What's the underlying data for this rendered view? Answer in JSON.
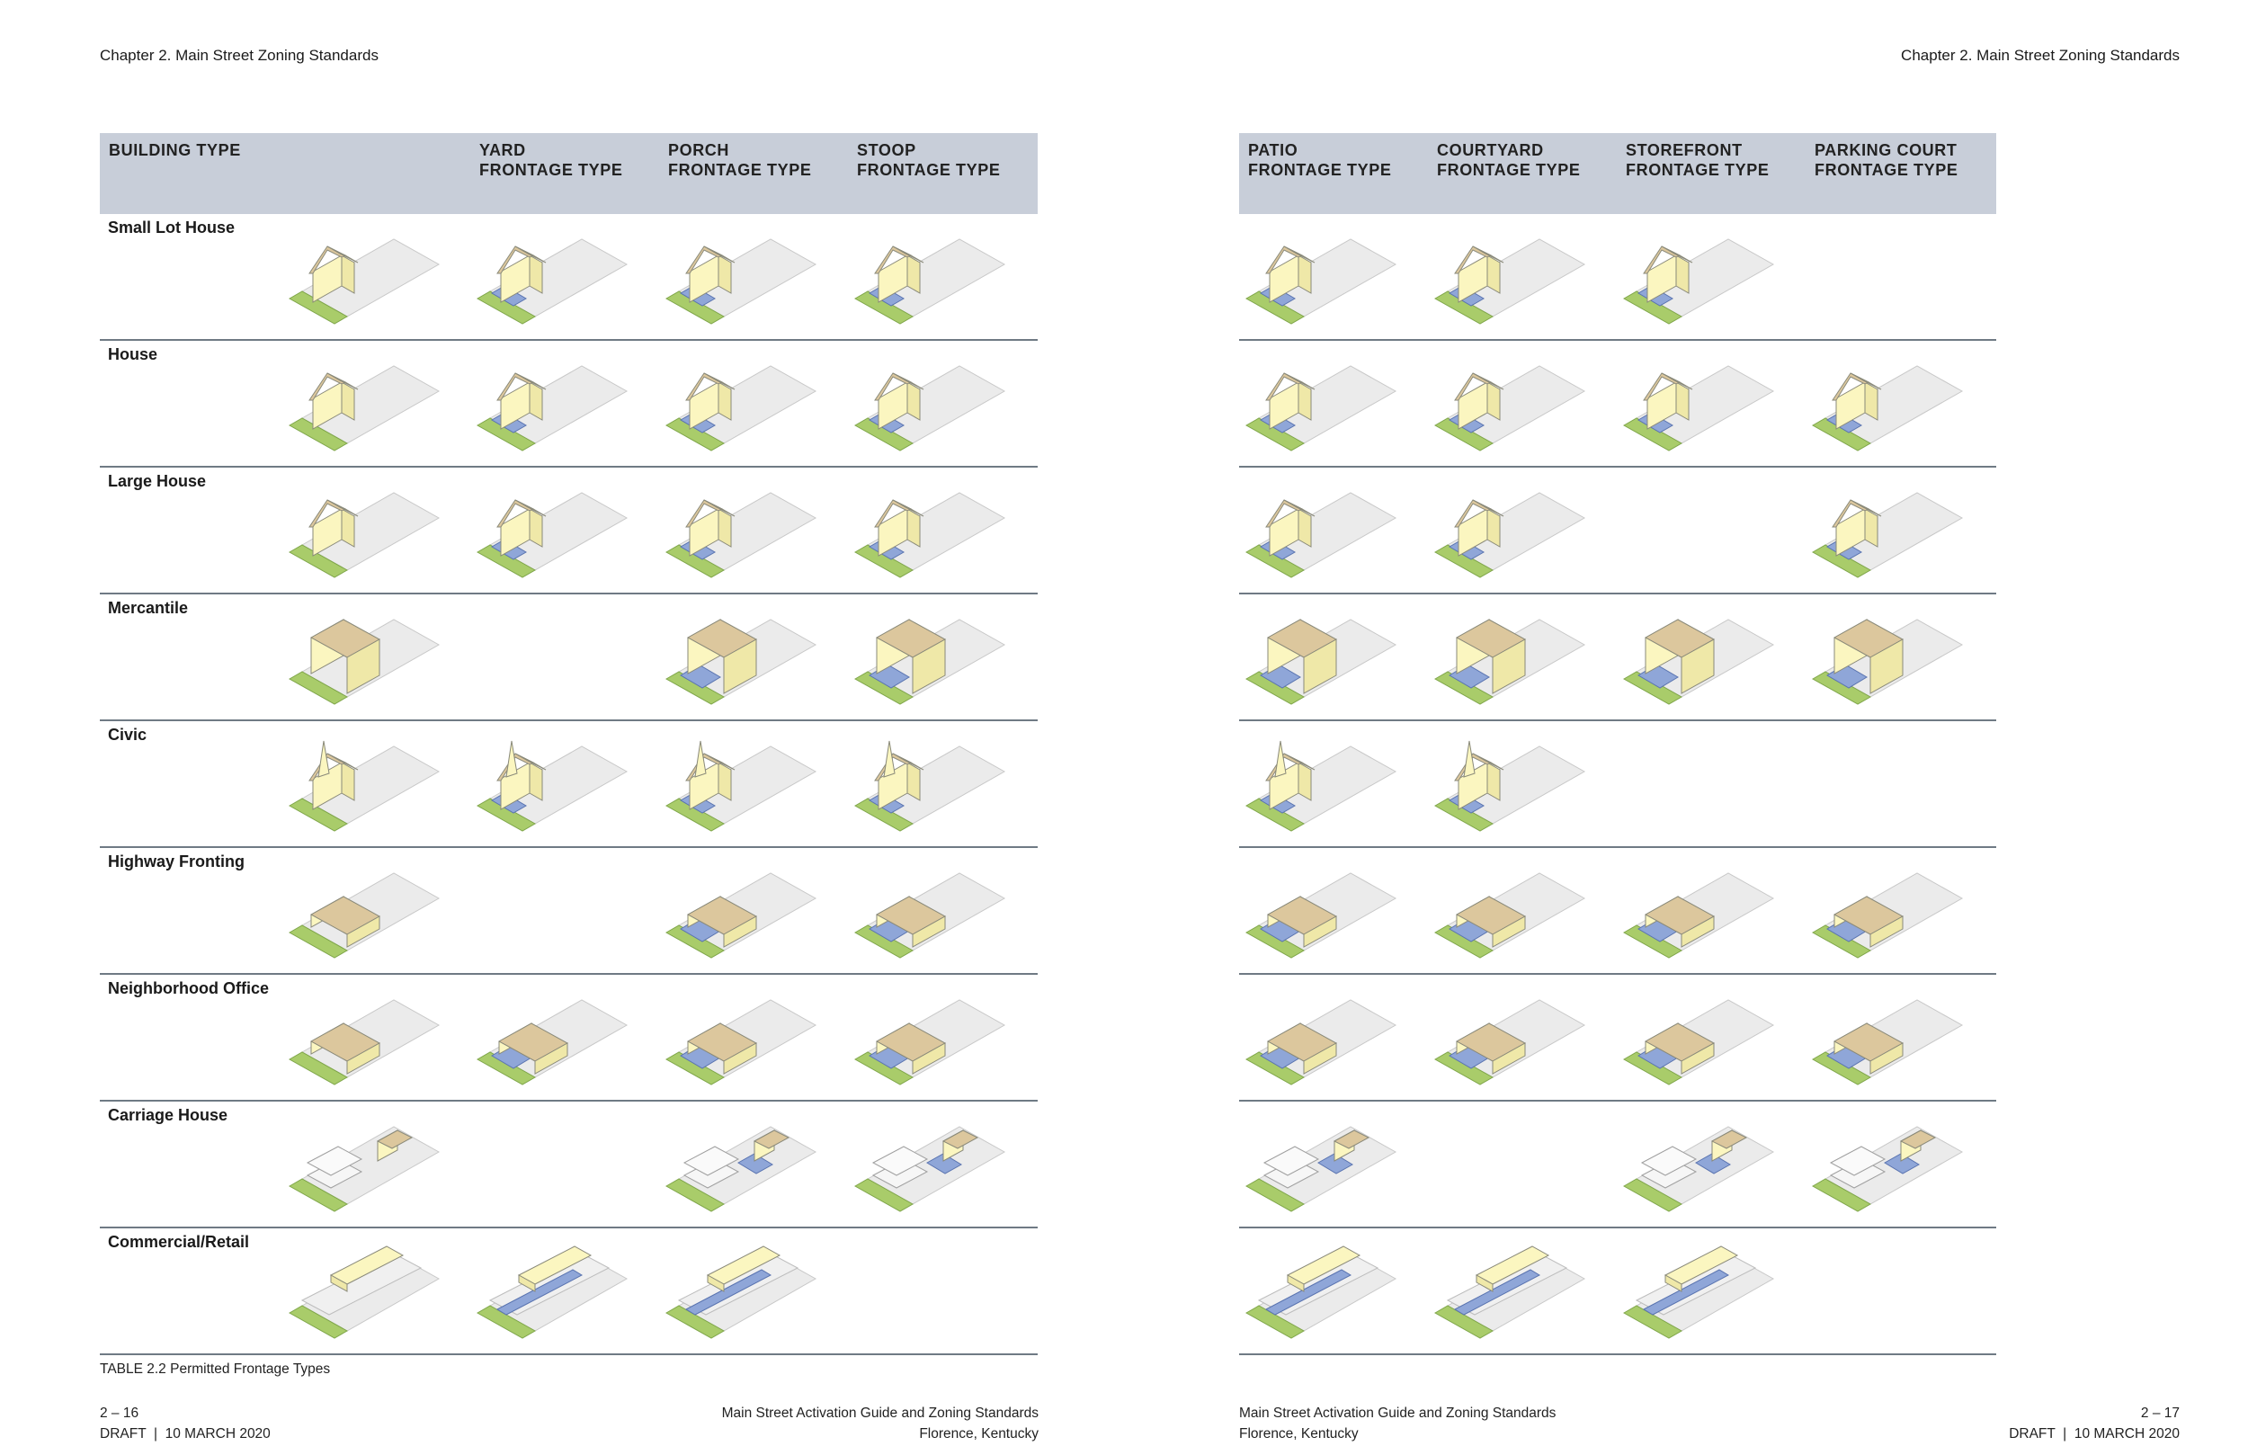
{
  "running_header": {
    "left": "Chapter 2. Main Street Zoning Standards",
    "right": "Chapter 2. Main Street Zoning Standards"
  },
  "table": {
    "building_type_header": "BUILDING TYPE",
    "columns_left": [
      {
        "line1": "YARD",
        "line2": "FRONTAGE TYPE"
      },
      {
        "line1": "PORCH",
        "line2": "FRONTAGE TYPE"
      },
      {
        "line1": "STOOP",
        "line2": "FRONTAGE TYPE"
      }
    ],
    "columns_right": [
      {
        "line1": "PATIO",
        "line2": "FRONTAGE TYPE"
      },
      {
        "line1": "COURTYARD",
        "line2": "FRONTAGE TYPE"
      },
      {
        "line1": "STOREFRONT",
        "line2": "FRONTAGE TYPE"
      },
      {
        "line1": "PARKING COURT",
        "line2": "FRONTAGE TYPE"
      }
    ],
    "rows": [
      {
        "label": "Small Lot House",
        "kind": "house",
        "cells": [
          1,
          1,
          1,
          1,
          1,
          1,
          1,
          0
        ]
      },
      {
        "label": "House",
        "kind": "house",
        "cells": [
          1,
          1,
          1,
          1,
          1,
          1,
          1,
          1
        ]
      },
      {
        "label": "Large House",
        "kind": "house",
        "cells": [
          1,
          1,
          1,
          1,
          1,
          1,
          0,
          1
        ]
      },
      {
        "label": "Mercantile",
        "kind": "block",
        "cells": [
          1,
          0,
          1,
          1,
          1,
          1,
          1,
          1
        ]
      },
      {
        "label": "Civic",
        "kind": "civic",
        "cells": [
          1,
          1,
          1,
          1,
          1,
          1,
          0,
          0
        ]
      },
      {
        "label": "Highway Fronting",
        "kind": "flat",
        "cells": [
          1,
          0,
          1,
          1,
          1,
          1,
          1,
          1
        ]
      },
      {
        "label": "Neighborhood Office",
        "kind": "flat",
        "cells": [
          1,
          1,
          1,
          1,
          1,
          1,
          1,
          1
        ]
      },
      {
        "label": "Carriage House",
        "kind": "carriage",
        "cells": [
          1,
          0,
          1,
          1,
          1,
          0,
          1,
          1
        ]
      },
      {
        "label": "Commercial/Retail",
        "kind": "retail",
        "cells": [
          1,
          1,
          1,
          0,
          1,
          1,
          1,
          0
        ]
      }
    ],
    "caption": "TABLE 2.2  Permitted Frontage Types"
  },
  "footer": {
    "left_page": "2 – 16",
    "left_draft": "DRAFT  |  10 MARCH 2020",
    "center_left_title": "Main Street Activation Guide and Zoning Standards",
    "center_left_place": "Florence, Kentucky",
    "center_right_title": "Main Street Activation Guide and Zoning Standards",
    "center_right_place": "Florence, Kentucky",
    "right_page": "2 – 17",
    "right_draft": "DRAFT  |  10 MARCH 2020"
  },
  "colors": {
    "header_band": "#c8ced9",
    "building_wall": "#fbf6c0",
    "roof": "#dcc79d",
    "lawn": "#a9cc6a",
    "frontage": "#8fa6d8",
    "lot": "#ebebeb"
  }
}
